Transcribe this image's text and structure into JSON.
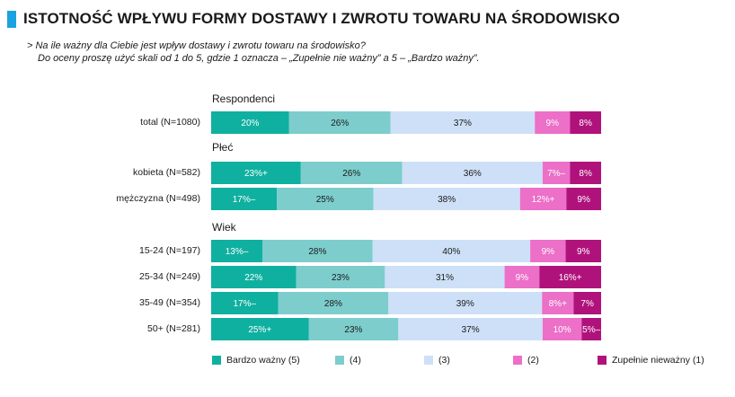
{
  "title": "ISTOTNOŚĆ WPŁYWU FORMY DOSTAWY I ZWROTU TOWARU NA ŚRODOWISKO",
  "question_line1": "> Na ile ważny dla Ciebie jest wpływ dostawy i zwrotu towaru na środowisko?",
  "question_line2": "Do oceny proszę użyć skali od 1 do 5, gdzie 1 oznacza – „Zupełnie nie ważny” a 5 – „Bardzo ważny”.",
  "colors": {
    "title_bar": "#1aa3e0",
    "s5": "#0fb0a0",
    "s4": "#7dcdcc",
    "s3": "#cde0f7",
    "s2": "#ec6fc8",
    "s1": "#b0127c"
  },
  "chart_data": {
    "type": "stacked-bar-horizontal",
    "xlim": [
      0,
      100
    ],
    "series_names": [
      "Bardzo ważny (5)",
      "(4)",
      "(3)",
      "(2)",
      "Zupełnie nieważny (1)"
    ],
    "groups": [
      {
        "label": "Respondenci",
        "rows": [
          {
            "label": "total (N=1080)",
            "values": [
              20,
              26,
              37,
              9,
              8
            ],
            "texts": [
              "20%",
              "26%",
              "37%",
              "9%",
              "8%"
            ]
          }
        ]
      },
      {
        "label": "Płeć",
        "rows": [
          {
            "label": "kobieta (N=582)",
            "values": [
              23,
              26,
              36,
              7,
              8
            ],
            "texts": [
              "23%+",
              "26%",
              "36%",
              "7%–",
              "8%"
            ]
          },
          {
            "label": "mężczyzna (N=498)",
            "values": [
              17,
              25,
              38,
              12,
              9
            ],
            "texts": [
              "17%–",
              "25%",
              "38%",
              "12%+",
              "9%"
            ]
          }
        ]
      },
      {
        "label": "Wiek",
        "rows": [
          {
            "label": "15-24 (N=197)",
            "values": [
              13,
              28,
              40,
              9,
              9
            ],
            "texts": [
              "13%–",
              "28%",
              "40%",
              "9%",
              "9%"
            ]
          },
          {
            "label": "25-34 (N=249)",
            "values": [
              22,
              23,
              31,
              9,
              16
            ],
            "texts": [
              "22%",
              "23%",
              "31%",
              "9%",
              "16%+"
            ]
          },
          {
            "label": "35-49 (N=354)",
            "values": [
              17,
              28,
              39,
              8,
              7
            ],
            "texts": [
              "17%–",
              "28%",
              "39%",
              "8%+",
              "7%"
            ]
          },
          {
            "label": "50+ (N=281)",
            "values": [
              25,
              23,
              37,
              10,
              5
            ],
            "texts": [
              "25%+",
              "23%",
              "37%",
              "10%",
              "5%–"
            ]
          }
        ]
      }
    ]
  }
}
